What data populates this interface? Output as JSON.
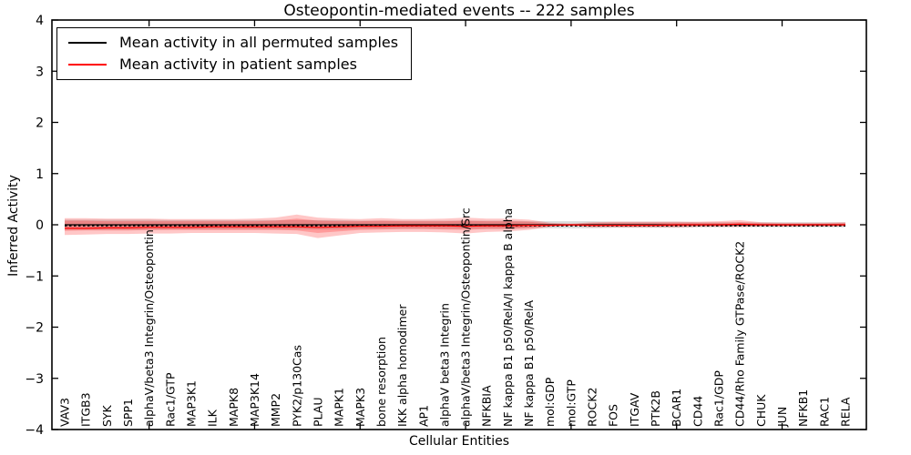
{
  "figure": {
    "title": "Osteopontin-mediated events -- 222 samples",
    "xlabel": "Cellular Entities",
    "ylabel": "Inferred Activity"
  },
  "legend": {
    "items": [
      {
        "label": "Mean activity in all permuted samples",
        "color": "#000000"
      },
      {
        "label": "Mean activity in patient samples",
        "color": "#ff0000"
      }
    ]
  },
  "chart_data": {
    "type": "line",
    "title": "Osteopontin-mediated events -- 222 samples",
    "xlabel": "Cellular Entities",
    "ylabel": "Inferred Activity",
    "ylim": [
      -4,
      4
    ],
    "yticks": [
      -4,
      -3,
      -2,
      -1,
      0,
      1,
      2,
      3,
      4
    ],
    "grid": false,
    "legend_position": "upper left",
    "categories": [
      "VAV3",
      "ITGB3",
      "SYK",
      "SPP1",
      "alphaV/beta3 Integrin/Osteopontin",
      "Rac1/GTP",
      "MAP3K1",
      "ILK",
      "MAPK8",
      "MAP3K14",
      "MMP2",
      "PYK2/p130Cas",
      "PLAU",
      "MAPK1",
      "MAPK3",
      "bone resorption",
      "IKK alpha homodimer",
      "AP1",
      "alphaV beta3 Integrin",
      "alphaV/beta3 Integrin/Osteopontin/Src",
      "NFKBIA",
      "NF kappa B1 p50/RelA/I kappa B alpha",
      "NF kappa B1 p50/RelA",
      "mol:GDP",
      "mol:GTP",
      "ROCK2",
      "FOS",
      "ITGAV",
      "PTK2B",
      "BCAR1",
      "CD44",
      "Rac1/GDP",
      "CD44/Rho Family GTPase/ROCK2",
      "CHUK",
      "JUN",
      "NFKB1",
      "RAC1",
      "RELA"
    ],
    "series": [
      {
        "name": "Mean activity in all permuted samples",
        "color": "#000000",
        "style": "solid-with-dashes",
        "values": [
          0,
          0,
          0,
          0,
          0,
          0,
          0,
          0,
          0,
          0,
          0,
          0,
          0,
          0,
          0,
          0,
          0,
          0,
          0,
          0,
          0,
          0,
          0,
          0,
          0,
          0,
          0,
          0,
          0,
          0,
          0,
          0,
          0,
          0,
          0,
          0,
          0,
          0
        ]
      },
      {
        "name": "Mean activity in patient samples",
        "color": "#ff0000",
        "style": "solid",
        "values": [
          -0.07,
          -0.07,
          -0.06,
          -0.06,
          -0.05,
          -0.05,
          -0.05,
          -0.04,
          -0.04,
          -0.04,
          -0.04,
          -0.04,
          -0.05,
          -0.04,
          -0.03,
          -0.03,
          -0.02,
          -0.02,
          -0.02,
          -0.03,
          -0.02,
          -0.02,
          -0.01,
          -0.01,
          0,
          -0.01,
          -0.01,
          -0.01,
          -0.01,
          0,
          0,
          0,
          0.01,
          0,
          0,
          0,
          0,
          0
        ]
      }
    ],
    "bands": [
      {
        "name": "permuted-samples-spread",
        "color": "#b0b0b0",
        "opacity": 0.45,
        "upper": [
          0.1,
          0.1,
          0.1,
          0.1,
          0.1,
          0.09,
          0.09,
          0.09,
          0.09,
          0.09,
          0.09,
          0.09,
          0.09,
          0.09,
          0.08,
          0.08,
          0.08,
          0.08,
          0.08,
          0.08,
          0.08,
          0.08,
          0.07,
          0.07,
          0.07,
          0.07,
          0.06,
          0.06,
          0.06,
          0.06,
          0.05,
          0.05,
          0.05,
          0.05,
          0.05,
          0.05,
          0.05,
          0.05
        ],
        "lower": [
          -0.1,
          -0.1,
          -0.1,
          -0.1,
          -0.1,
          -0.09,
          -0.09,
          -0.09,
          -0.09,
          -0.09,
          -0.09,
          -0.09,
          -0.09,
          -0.09,
          -0.08,
          -0.08,
          -0.08,
          -0.08,
          -0.08,
          -0.08,
          -0.08,
          -0.08,
          -0.07,
          -0.07,
          -0.07,
          -0.07,
          -0.06,
          -0.06,
          -0.06,
          -0.06,
          -0.05,
          -0.05,
          -0.05,
          -0.05,
          -0.05,
          -0.05,
          -0.05,
          -0.05
        ]
      },
      {
        "name": "patient-samples-spread-outer",
        "color": "#ff0000",
        "opacity": 0.22,
        "upper": [
          0.13,
          0.13,
          0.12,
          0.12,
          0.12,
          0.11,
          0.11,
          0.11,
          0.11,
          0.12,
          0.14,
          0.2,
          0.14,
          0.12,
          0.11,
          0.13,
          0.11,
          0.11,
          0.12,
          0.14,
          0.12,
          0.12,
          0.1,
          0.04,
          0.02,
          0.05,
          0.06,
          0.06,
          0.06,
          0.06,
          0.06,
          0.07,
          0.09,
          0.05,
          0.04,
          0.04,
          0.04,
          0.05
        ],
        "lower": [
          -0.2,
          -0.19,
          -0.18,
          -0.18,
          -0.17,
          -0.17,
          -0.16,
          -0.16,
          -0.16,
          -0.16,
          -0.17,
          -0.18,
          -0.26,
          -0.21,
          -0.16,
          -0.15,
          -0.14,
          -0.14,
          -0.15,
          -0.17,
          -0.14,
          -0.13,
          -0.1,
          -0.04,
          -0.02,
          -0.05,
          -0.05,
          -0.05,
          -0.05,
          -0.05,
          -0.04,
          -0.04,
          -0.04,
          -0.03,
          -0.03,
          -0.03,
          -0.03,
          -0.03
        ]
      },
      {
        "name": "patient-samples-spread-inner",
        "color": "#ff0000",
        "opacity": 0.22,
        "upper": [
          0.08,
          0.08,
          0.07,
          0.07,
          0.07,
          0.07,
          0.07,
          0.07,
          0.07,
          0.07,
          0.08,
          0.12,
          0.08,
          0.07,
          0.07,
          0.08,
          0.07,
          0.07,
          0.07,
          0.08,
          0.07,
          0.07,
          0.06,
          0.02,
          0.01,
          0.03,
          0.04,
          0.04,
          0.04,
          0.04,
          0.04,
          0.04,
          0.05,
          0.03,
          0.02,
          0.02,
          0.02,
          0.03
        ],
        "lower": [
          -0.12,
          -0.11,
          -0.11,
          -0.11,
          -0.1,
          -0.1,
          -0.1,
          -0.1,
          -0.1,
          -0.1,
          -0.1,
          -0.11,
          -0.16,
          -0.13,
          -0.1,
          -0.09,
          -0.08,
          -0.08,
          -0.09,
          -0.1,
          -0.08,
          -0.08,
          -0.06,
          -0.02,
          -0.01,
          -0.03,
          -0.03,
          -0.03,
          -0.03,
          -0.03,
          -0.02,
          -0.02,
          -0.02,
          -0.02,
          -0.02,
          -0.02,
          -0.02,
          -0.02
        ]
      }
    ],
    "xtick_major_indices": [
      4,
      9,
      14,
      19,
      24,
      29,
      34
    ]
  }
}
